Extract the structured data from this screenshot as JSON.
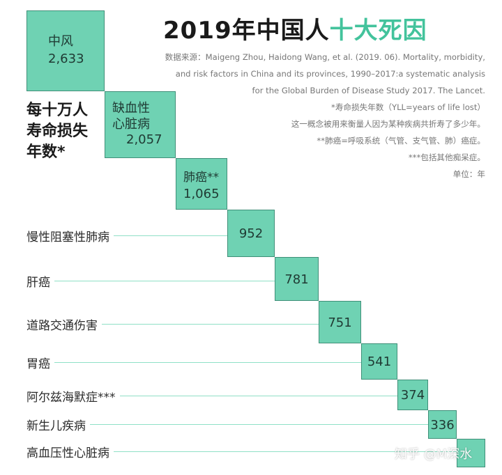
{
  "title": {
    "main": "2019年中国人",
    "accent": "十大死因"
  },
  "source_note": "数据来源：Maigeng Zhou, Haidong Wang, et al. (2019. 06). Mortality, morbidity,\nand risk factors in China and its provinces, 1990–2017:a systematic analysis\nfor the Global Burden of Disease Study 2017. The Lancet.\n*寿命损失年数（YLL=years of life lost）\n这一概念被用来衡量人因为某种疾病共折寿了多少年。\n**肺癌=呼吸系统（气管、支气管、肺）癌症。\n***包括其他痴呆症。\n单位：年",
  "watermark": "知乎 @M深水",
  "colors": {
    "box_fill": "#6fd2b3",
    "box_border": "#3f8f78",
    "line": "#8fe0c6",
    "accent": "#43c39c"
  },
  "chart_data": {
    "type": "bar",
    "ylabel": "每十万人\n寿命损失\n年数*",
    "unit": "年",
    "categories": [
      "中风",
      "缺血性\n心脏病",
      "肺癌**",
      "慢性阻塞性肺病",
      "肝癌",
      "道路交通伤害",
      "胃癌",
      "阿尔兹海默症***",
      "新生儿疾病",
      "高血压性心脏病"
    ],
    "values": [
      2633,
      2057,
      1065,
      952,
      781,
      751,
      541,
      374,
      336,
      0
    ],
    "value_labels": [
      "2,633",
      "2,057",
      "1,065",
      "952",
      "781",
      "751",
      "541",
      "374",
      "336",
      ""
    ]
  }
}
